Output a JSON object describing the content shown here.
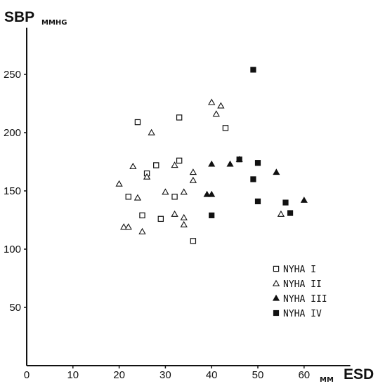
{
  "chart_data": {
    "type": "scatter",
    "title": "",
    "ylabel": "SBP",
    "ylabel_unit": "MMHG",
    "xlabel": "ESD",
    "xlabel_unit": "MM",
    "xlim": [
      0,
      70
    ],
    "ylim": [
      0,
      290
    ],
    "x_ticks": [
      "0",
      "10",
      "20",
      "30",
      "40",
      "50",
      "60"
    ],
    "x_tick_values": [
      0,
      10,
      20,
      30,
      40,
      50,
      60
    ],
    "y_ticks": [
      "50",
      "100",
      "150",
      "200",
      "250"
    ],
    "y_tick_values": [
      50,
      100,
      150,
      200,
      250
    ],
    "grid": false,
    "legend_position": "bottom-right",
    "series": [
      {
        "name": "NYHA I",
        "marker": "square-open",
        "points": [
          [
            24,
            209
          ],
          [
            33,
            213
          ],
          [
            43,
            204
          ],
          [
            33,
            176
          ],
          [
            26,
            165
          ],
          [
            28,
            172
          ],
          [
            22,
            145
          ],
          [
            32,
            145
          ],
          [
            25,
            129
          ],
          [
            29,
            126
          ],
          [
            36,
            107
          ]
        ]
      },
      {
        "name": "NYHA II",
        "marker": "triangle-open",
        "points": [
          [
            27,
            200
          ],
          [
            40,
            226
          ],
          [
            42,
            223
          ],
          [
            41,
            216
          ],
          [
            23,
            171
          ],
          [
            26,
            162
          ],
          [
            32,
            172
          ],
          [
            36,
            166
          ],
          [
            36,
            159
          ],
          [
            20,
            156
          ],
          [
            24,
            144
          ],
          [
            30,
            149
          ],
          [
            34,
            149
          ],
          [
            21,
            119
          ],
          [
            22,
            119
          ],
          [
            25,
            115
          ],
          [
            32,
            130
          ],
          [
            34,
            127
          ],
          [
            34,
            121
          ],
          [
            55,
            130
          ]
        ]
      },
      {
        "name": "NYHA III",
        "marker": "triangle-filled",
        "points": [
          [
            40,
            173
          ],
          [
            44,
            173
          ],
          [
            46,
            177
          ],
          [
            54,
            166
          ],
          [
            39,
            147
          ],
          [
            40,
            147
          ],
          [
            60,
            142
          ]
        ]
      },
      {
        "name": "NYHA IV",
        "marker": "square-filled",
        "points": [
          [
            49,
            254
          ],
          [
            46,
            177
          ],
          [
            50,
            174
          ],
          [
            49,
            160
          ],
          [
            50,
            141
          ],
          [
            56,
            140
          ],
          [
            57,
            131
          ],
          [
            40,
            129
          ]
        ]
      }
    ]
  }
}
